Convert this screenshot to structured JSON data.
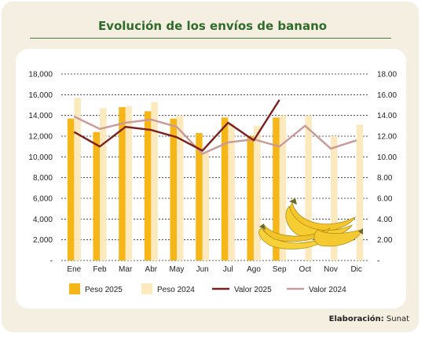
{
  "chart_data": {
    "type": "bar",
    "title": "Evolución de los envíos de banano",
    "categories": [
      "Ene",
      "Feb",
      "Mar",
      "Abr",
      "May",
      "Jun",
      "Jul",
      "Ago",
      "Sep",
      "Oct",
      "Nov",
      "Dic"
    ],
    "y_left": {
      "min": 0,
      "max": 18000,
      "ticks": [
        "-",
        "2,000",
        "4,000",
        "6,000",
        "8,000",
        "10,000",
        "12,000",
        "14,000",
        "16,000",
        "18,000"
      ]
    },
    "y_right": {
      "min": 0,
      "max": 18,
      "ticks": [
        "-",
        "2.00",
        "4.00",
        "6.00",
        "8.00",
        "10.00",
        "12.00",
        "14.00",
        "16.00",
        "18.00"
      ]
    },
    "series": [
      {
        "name": "Peso 2025",
        "kind": "bar",
        "axis": "left",
        "color": "#f7b618",
        "values": [
          13700,
          12400,
          14800,
          14400,
          13700,
          12300,
          13800,
          12000,
          13800,
          null,
          null,
          null
        ]
      },
      {
        "name": "Peso 2024",
        "kind": "bar",
        "axis": "left",
        "color": "#fde9be",
        "values": [
          15700,
          14700,
          14900,
          15300,
          14000,
          10400,
          13200,
          13000,
          14000,
          14000,
          12000,
          13100
        ]
      },
      {
        "name": "Valor 2025",
        "kind": "line",
        "axis": "right",
        "color": "#7b1f1f",
        "values": [
          12.4,
          11.0,
          12.9,
          12.6,
          11.9,
          10.6,
          13.3,
          11.6,
          15.5,
          null,
          null,
          null
        ]
      },
      {
        "name": "Valor 2024",
        "kind": "line",
        "axis": "right",
        "color": "#c99a9a",
        "values": [
          13.9,
          12.7,
          13.3,
          13.6,
          12.9,
          10.3,
          11.4,
          11.7,
          11.0,
          13.0,
          10.8,
          11.6
        ]
      }
    ],
    "grid": true,
    "legend_position": "bottom"
  },
  "credit": {
    "label": "Elaboración:",
    "source": "Sunat"
  },
  "image": {
    "name": "bananas-illustration"
  }
}
